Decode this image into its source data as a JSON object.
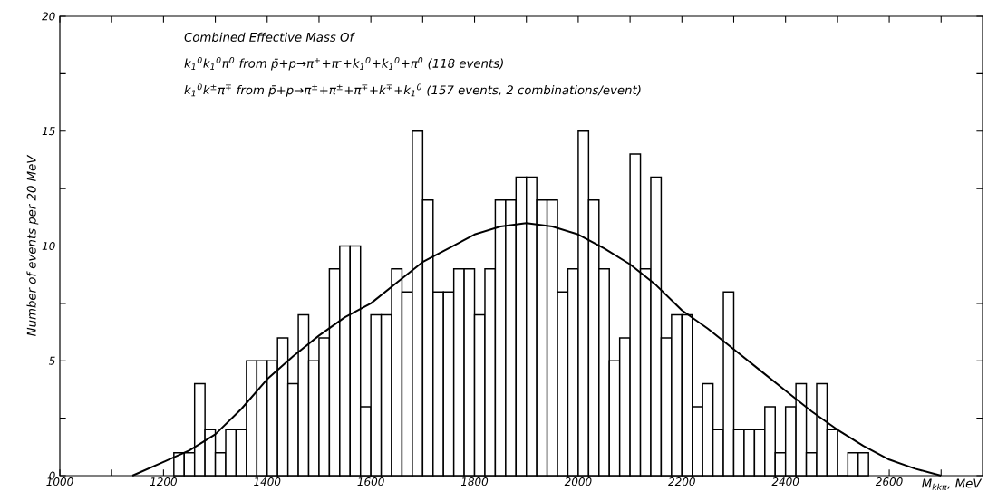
{
  "chart_data": {
    "type": "histogram",
    "title": "Combined Effective Mass Of",
    "annotations": [
      "k$_{1}$$^{0}$k$_{1}$$^{0}$π$^{0}$ from p̄+p→π$^{+}$+π$^{-}$+k$_{1}$$^{0}$+k$_{1}$$^{0}$+π$^{0}$ (118 events)",
      "k$_{1}$$^{0}$k$^{±}$π$^{∓}$ from p̄+p→π$^{±}$+π$^{±}$+π$^{∓}$+k$^{∓}$+k$_{1}$$^{0}$ (157 events, 2 combinations/event)"
    ],
    "xlabel": "M$_{kkπ}$, MeV",
    "ylabel": "Number of events per 20 MeV",
    "series": [
      {
        "color": "#000000",
        "bins": [
          1220,
          1240,
          1260,
          1280,
          1300,
          1320,
          1340,
          1360,
          1380,
          1400,
          1420,
          1440,
          1460,
          1480,
          1500,
          1520,
          1540,
          1560,
          1580,
          1600,
          1620,
          1640,
          1660,
          1680,
          1700,
          1720,
          1740,
          1760,
          1780,
          1800,
          1820,
          1840,
          1860,
          1880,
          1900,
          1920,
          1940,
          1960,
          1980,
          2000,
          2020,
          2040,
          2060,
          2080,
          2100,
          2120,
          2140,
          2160,
          2180,
          2200,
          2220,
          2240,
          2260,
          2280,
          2300,
          2320,
          2340,
          2360,
          2380,
          2400,
          2420,
          2440,
          2460,
          2480,
          2500,
          2520,
          2540,
          2560
        ],
        "values": [
          1,
          1,
          4,
          2,
          1,
          2,
          2,
          5,
          5,
          5,
          6,
          4,
          7,
          5,
          6,
          9,
          10,
          10,
          3,
          7,
          7,
          9,
          8,
          15,
          12,
          8,
          8,
          9,
          9,
          7,
          9,
          12,
          12,
          13,
          13,
          12,
          12,
          8,
          9,
          15,
          12,
          9,
          5,
          6,
          14,
          9,
          13,
          6,
          7,
          7,
          3,
          4,
          2,
          8,
          2,
          2,
          2,
          3,
          1,
          3,
          4,
          1,
          4,
          2,
          0,
          1,
          1
        ]
      },
      {
        "type": "line",
        "color": "#000000",
        "x": [
          1140,
          1200,
          1250,
          1300,
          1350,
          1400,
          1450,
          1500,
          1550,
          1600,
          1650,
          1700,
          1750,
          1800,
          1850,
          1900,
          1950,
          2000,
          2050,
          2100,
          2150,
          2200,
          2250,
          2300,
          2350,
          2400,
          2450,
          2500,
          2550,
          2600,
          2650,
          2700
        ],
        "values": [
          0,
          0.6,
          1.1,
          1.8,
          2.9,
          4.2,
          5.2,
          6.1,
          6.9,
          7.5,
          8.4,
          9.3,
          9.9,
          10.5,
          10.85,
          11,
          10.85,
          10.5,
          9.9,
          9.2,
          8.3,
          7.2,
          6.4,
          5.5,
          4.6,
          3.7,
          2.8,
          2.0,
          1.3,
          0.7,
          0.3,
          0
        ]
      }
    ],
    "xlim": [
      1000,
      2780
    ],
    "ylim": [
      0,
      20
    ],
    "xticks": [
      1000,
      {
        "value": 1100,
        "label": null
      },
      1200,
      {
        "value": 1300,
        "label": null
      },
      1400,
      {
        "value": 1500,
        "label": null
      },
      1600,
      {
        "value": 1700,
        "label": null
      },
      1800,
      {
        "value": 1900,
        "label": null
      },
      2000,
      {
        "value": 2100,
        "label": null
      },
      2200,
      {
        "value": 2300,
        "label": null
      },
      2400,
      {
        "value": 2500,
        "label": null
      },
      2600,
      {
        "value": 2700,
        "label": null
      }
    ],
    "yticks": [
      0,
      {
        "value": 2.5,
        "label": null
      },
      5,
      {
        "value": 7.5,
        "label": null
      },
      10,
      {
        "value": 12.5,
        "label": null
      },
      15,
      {
        "value": 17.5,
        "label": null
      },
      20
    ],
    "grid": false,
    "legend": false,
    "line_style": "solid",
    "marker": "none"
  }
}
